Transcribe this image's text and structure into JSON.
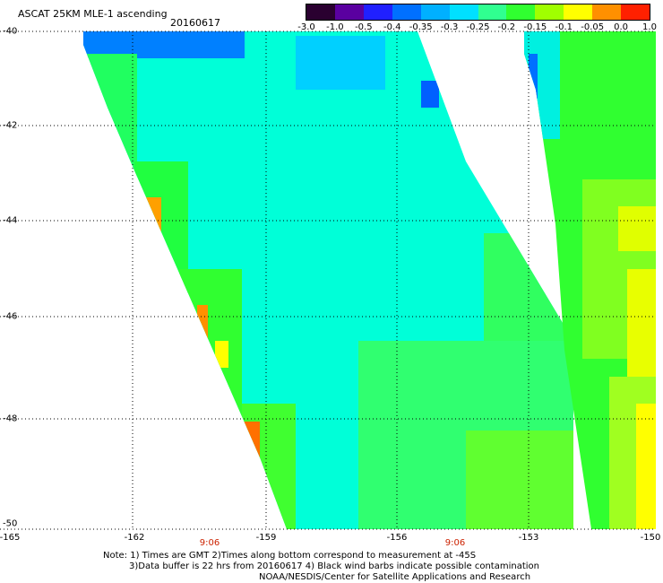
{
  "header": {
    "title": "ASCAT 25KM MLE-1 ascending",
    "date": "20160617"
  },
  "colorbar": {
    "ticks": [
      "-3.0",
      "-1.0",
      "-0.5",
      "-0.4",
      "-0.35",
      "-0.3",
      "-0.25",
      "-0.2",
      "-0.15",
      "-0.1",
      "-0.05",
      "0.0",
      "1.0"
    ],
    "colors": [
      "#2a0030",
      "#5a00a0",
      "#2020ff",
      "#0070ff",
      "#00b0ff",
      "#00e0ff",
      "#30ff90",
      "#30ff30",
      "#a0ff00",
      "#ffff00",
      "#ff9000",
      "#ff2000"
    ]
  },
  "axes": {
    "lat_labels": [
      "-40",
      "-42",
      "-44",
      "-46",
      "-48",
      "-50"
    ],
    "lon_labels": [
      "-165",
      "-162",
      "-159",
      "-156",
      "-153",
      "-150"
    ],
    "lat_values": [
      -40,
      -42,
      -44,
      -46,
      -48,
      -50
    ],
    "lon_values": [
      -165,
      -162,
      -159,
      -156,
      -153,
      -150
    ]
  },
  "pass_times": [
    "9:06",
    "9:06"
  ],
  "notes": {
    "line1": "Note: 1) Times are GMT 2)Times along bottom correspond to measurement at -45S",
    "line2": "3)Data buffer is 22 hrs from 20160617 4) Black wind barbs indicate possible contamination",
    "line3": "NOAA/NESDIS/Center for Satellite Applications and Research"
  },
  "colors": {
    "background": "#ffffff",
    "grid": "#000000",
    "time_label": "#cc2200"
  }
}
